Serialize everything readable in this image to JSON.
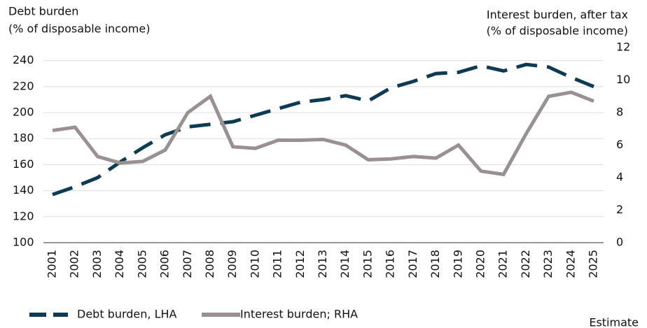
{
  "chart_data": {
    "type": "line",
    "ylabel": [
      "Debt burden",
      "(% of disposable income)"
    ],
    "y2label": [
      "Interest burden, after tax",
      "(% of disposable income)"
    ],
    "categories": [
      "2001",
      "2002",
      "2003",
      "2004",
      "2005",
      "2006",
      "2007",
      "2008",
      "2009",
      "2010",
      "2011",
      "2012",
      "2013",
      "2014",
      "2015",
      "2016",
      "2017",
      "2018",
      "2019",
      "2020",
      "2021",
      "2022",
      "2023",
      "2024",
      "2025"
    ],
    "series": [
      {
        "name": "Debt burden, LHA",
        "color": "#0d3b53",
        "line_style": "dashed",
        "axis": "y",
        "values": [
          137,
          143,
          150,
          162,
          173,
          183,
          189,
          191,
          193,
          198,
          203,
          208,
          210,
          213,
          209,
          219,
          224,
          230,
          231,
          236,
          232,
          237,
          235,
          227,
          220
        ]
      },
      {
        "name": "Interest burden; RHA",
        "color": "#9a9092",
        "line_style": "solid",
        "axis": "y2",
        "values": [
          6.9,
          7.1,
          5.3,
          4.9,
          5.0,
          5.7,
          8.0,
          9.0,
          5.9,
          5.8,
          6.3,
          6.3,
          6.35,
          6.0,
          5.1,
          5.15,
          5.3,
          5.2,
          6.0,
          4.4,
          4.2,
          6.7,
          9.0,
          9.25,
          8.7
        ]
      }
    ],
    "ylim": [
      100,
      250
    ],
    "yticks": [
      100,
      120,
      140,
      160,
      180,
      200,
      220,
      240
    ],
    "y2lim": [
      0,
      12
    ],
    "y2ticks": [
      0,
      2,
      4,
      6,
      8,
      10,
      12
    ],
    "grid": true,
    "legend": "bottom",
    "annotation": "Estimate"
  }
}
